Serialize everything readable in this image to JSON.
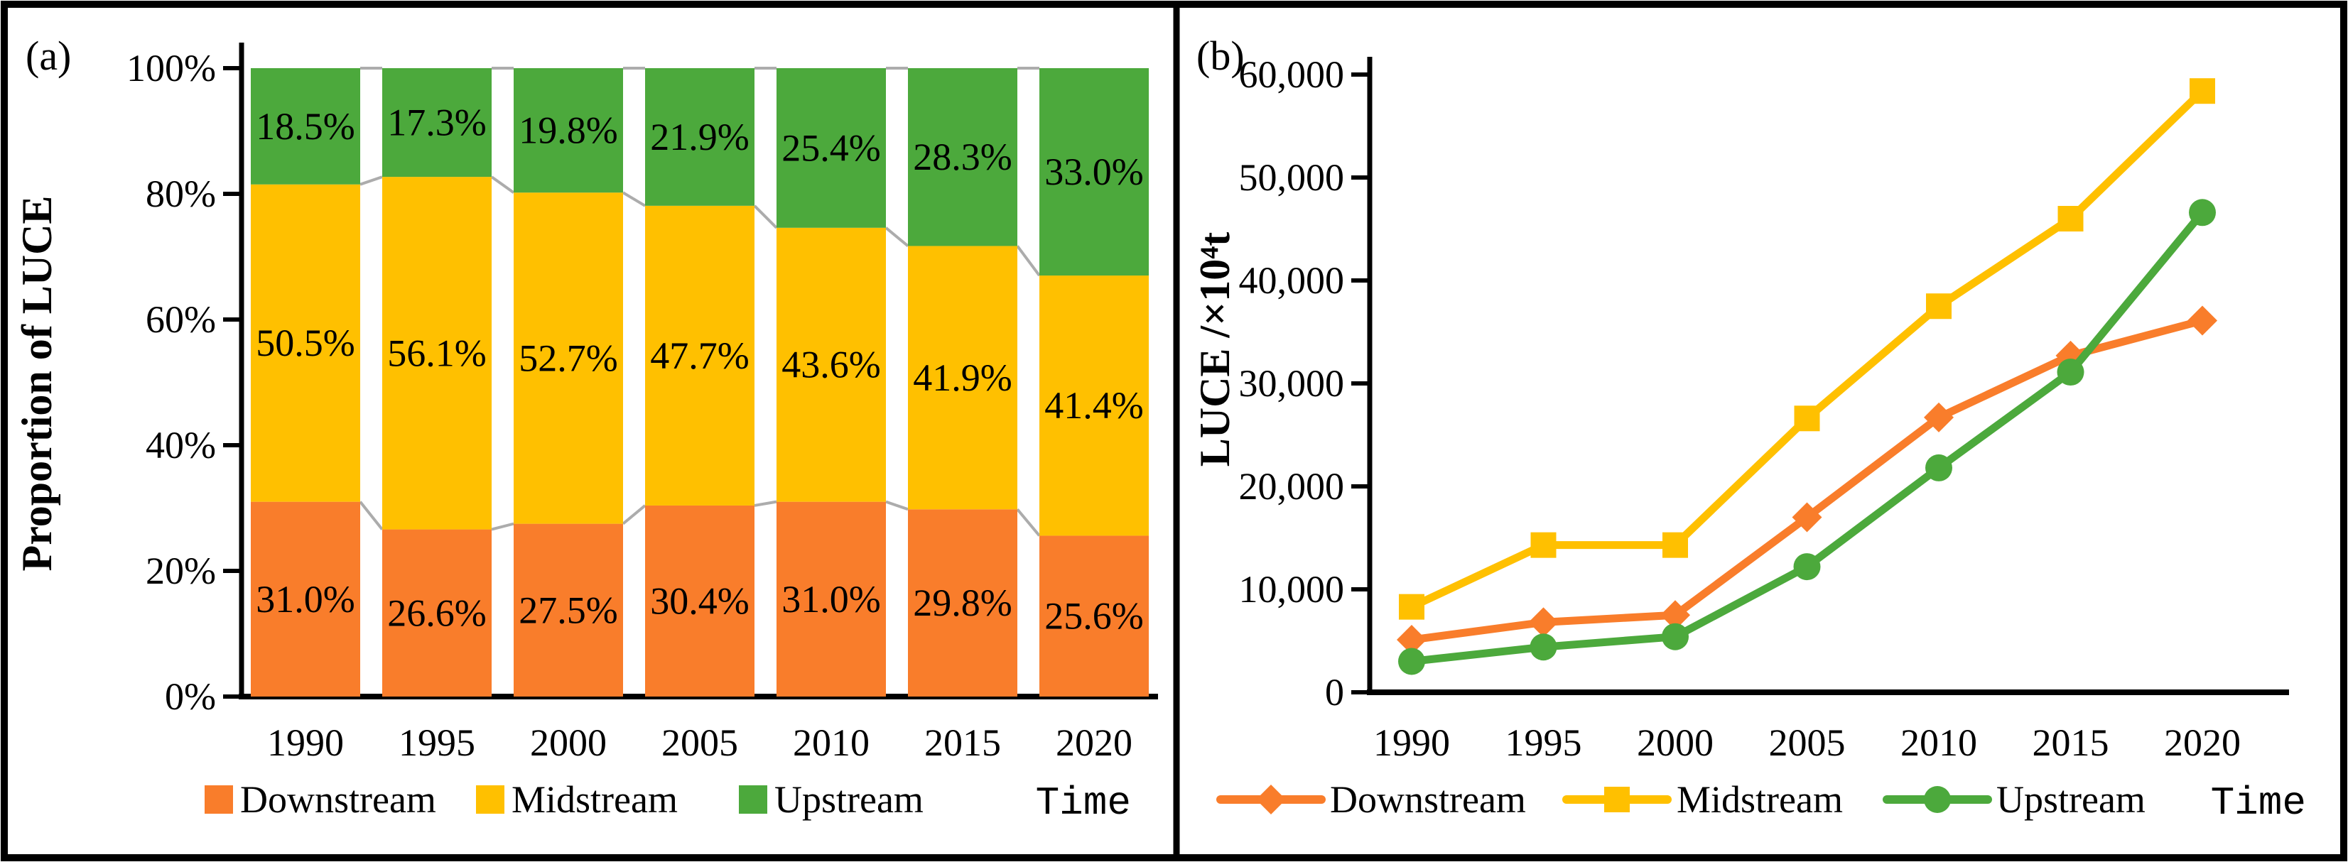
{
  "chart_data": [
    {
      "id": "panel-a",
      "type": "bar",
      "stacked": true,
      "percent_stacked": true,
      "panel_label": "(a)",
      "ylabel": "Proportion of LUCE",
      "xlabel": "Time",
      "categories": [
        "1990",
        "1995",
        "2000",
        "2005",
        "2010",
        "2015",
        "2020"
      ],
      "series": [
        {
          "name": "Downstream",
          "color": "#F97D2B",
          "values": [
            31.0,
            26.6,
            27.5,
            30.4,
            31.0,
            29.8,
            25.6
          ],
          "labels": [
            "31.0%",
            "26.6%",
            "27.5%",
            "30.4%",
            "31.0%",
            "29.8%",
            "25.6%"
          ]
        },
        {
          "name": "Midstream",
          "color": "#FFC000",
          "values": [
            50.5,
            56.1,
            52.7,
            47.7,
            43.6,
            41.9,
            41.4
          ],
          "labels": [
            "50.5%",
            "56.1%",
            "52.7%",
            "47.7%",
            "43.6%",
            "41.9%",
            "41.4%"
          ]
        },
        {
          "name": "Upstream",
          "color": "#4CA93C",
          "values": [
            18.5,
            17.3,
            19.8,
            21.9,
            25.4,
            28.3,
            33.0
          ],
          "labels": [
            "18.5%",
            "17.3%",
            "19.8%",
            "21.9%",
            "25.4%",
            "28.3%",
            "33.0%"
          ]
        }
      ],
      "y_ticks": [
        "0%",
        "20%",
        "40%",
        "60%",
        "80%",
        "100%"
      ],
      "ylim": [
        0,
        100
      ],
      "grid": false,
      "legend_position": "bottom",
      "connector_color": "#ACACAC"
    },
    {
      "id": "panel-b",
      "type": "line",
      "panel_label": "(b)",
      "ylabel": "LUCE /×10⁴t",
      "xlabel": "Time",
      "x": [
        "1990",
        "1995",
        "2000",
        "2005",
        "2010",
        "2015",
        "2020"
      ],
      "series": [
        {
          "name": "Downstream",
          "color": "#F97D2B",
          "marker": "diamond",
          "values": [
            5100,
            6800,
            7500,
            17000,
            26700,
            32700,
            36100
          ]
        },
        {
          "name": "Midstream",
          "color": "#FFC000",
          "marker": "square",
          "values": [
            8300,
            14300,
            14300,
            26600,
            37500,
            46000,
            58400
          ]
        },
        {
          "name": "Upstream",
          "color": "#4CA93C",
          "marker": "circle",
          "values": [
            3000,
            4400,
            5400,
            12200,
            21800,
            31100,
            46600
          ]
        }
      ],
      "y_ticks": [
        "0",
        "10,000",
        "20,000",
        "30,000",
        "40,000",
        "50,000",
        "60,000"
      ],
      "ylim": [
        0,
        60000
      ],
      "y_tick_step": 10000,
      "grid": false,
      "legend_position": "bottom"
    }
  ]
}
